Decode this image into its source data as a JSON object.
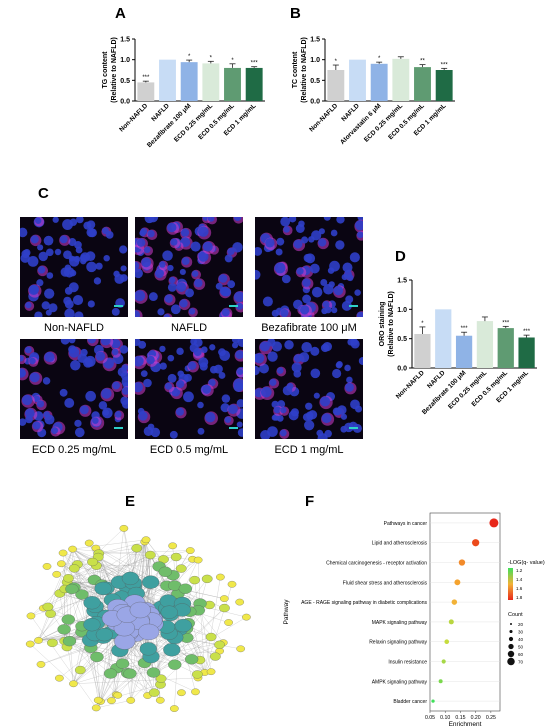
{
  "panels": {
    "A": "A",
    "B": "B",
    "C": "C",
    "D": "D",
    "E": "E",
    "F": "F"
  },
  "colors": {
    "grey": "#d0d0d0",
    "light_blue": "#c7dcf5",
    "blue": "#8fb3e6",
    "pale_green": "#d9ead9",
    "green1": "#9cc6a6",
    "green2": "#5f9b72",
    "green3": "#1f6b45",
    "micro_bg": "#0a0512",
    "nucleus": "#2f3fc9",
    "lipid": "#d23ccf"
  },
  "chart_data": [
    {
      "id": "A",
      "type": "bar",
      "ylabel": "TG content",
      "ylabel2": "(Relative to NAFLD)",
      "ylim": [
        0,
        1.5
      ],
      "yticks": [
        "0.0",
        "0.5",
        "1.0",
        "1.5"
      ],
      "categories": [
        "Non-NAFLD",
        "NAFLD",
        "Bezafibrate 100 μM",
        "ECD 0.25 mg/mL",
        "ECD 0.5 mg/mL",
        "ECD 1 mg/mL"
      ],
      "values": [
        0.45,
        1.0,
        0.94,
        0.91,
        0.8,
        0.8
      ],
      "errors": [
        0.03,
        0,
        0.05,
        0.05,
        0.1,
        0.03
      ],
      "sig": [
        "***",
        "",
        "*",
        "*",
        "*",
        "***"
      ],
      "colors": [
        "#d0d0d0",
        "#c7dcf5",
        "#8fb3e6",
        "#d9ead9",
        "#5f9b72",
        "#1f6b45"
      ]
    },
    {
      "id": "B",
      "type": "bar",
      "ylabel": "TC content",
      "ylabel2": "(Relative to NAFLD)",
      "ylim": [
        0,
        1.5
      ],
      "yticks": [
        "0.0",
        "0.5",
        "1.0",
        "1.5"
      ],
      "categories": [
        "Non-NAFLD",
        "NAFLD",
        "Atorvastatin 6 μM",
        "ECD 0.25 mg/mL",
        "ECD 0.5 mg/mL",
        "ECD 1 mg/mL"
      ],
      "values": [
        0.75,
        1.0,
        0.9,
        1.02,
        0.82,
        0.75
      ],
      "errors": [
        0.12,
        0,
        0.04,
        0.05,
        0.06,
        0.04
      ],
      "sig": [
        "*",
        "",
        "*",
        "",
        "**",
        "***"
      ],
      "colors": [
        "#d0d0d0",
        "#c7dcf5",
        "#8fb3e6",
        "#d9ead9",
        "#5f9b72",
        "#1f6b45"
      ]
    },
    {
      "id": "D",
      "type": "bar",
      "ylabel": "ORO staining",
      "ylabel2": "(Relative to NAFLD)",
      "ylim": [
        0,
        1.5
      ],
      "yticks": [
        "0.0",
        "0.5",
        "1.0",
        "1.5"
      ],
      "categories": [
        "Non-NAFLD",
        "NAFLD",
        "Bezafibrate 100 μM",
        "ECD 0.25 mg/mL",
        "ECD 0.5 mg/mL",
        "ECD 1 mg/mL"
      ],
      "values": [
        0.58,
        1.0,
        0.55,
        0.8,
        0.68,
        0.52
      ],
      "errors": [
        0.12,
        0,
        0.06,
        0.07,
        0.03,
        0.04
      ],
      "sig": [
        "*",
        "",
        "***",
        "",
        "***",
        "***"
      ],
      "colors": [
        "#d0d0d0",
        "#c7dcf5",
        "#8fb3e6",
        "#d9ead9",
        "#5f9b72",
        "#1f6b45"
      ]
    },
    {
      "id": "F",
      "type": "scatter",
      "ylabel": "Pathway",
      "xlabel": "Enrichment",
      "xticks": [
        "0.05",
        "0.10",
        "0.15",
        "0.20",
        "0.25"
      ],
      "xlim": [
        0.05,
        0.28
      ],
      "pathways": [
        {
          "name": "Pathways in cancer",
          "x": 0.26,
          "count": 75,
          "color": "#e8281b"
        },
        {
          "name": "Lipid and atherosclerosis",
          "x": 0.2,
          "count": 55,
          "color": "#ec4a1c"
        },
        {
          "name": "Chemical carcinogenesis - receptor activation",
          "x": 0.155,
          "count": 45,
          "color": "#f28a2a"
        },
        {
          "name": "Fluid shear stress and atherosclerosis",
          "x": 0.14,
          "count": 40,
          "color": "#f5a32e"
        },
        {
          "name": "AGE - RAGE signaling pathway in diabetic complications",
          "x": 0.13,
          "count": 35,
          "color": "#f2b237"
        },
        {
          "name": "MAPK signaling pathway",
          "x": 0.12,
          "count": 30,
          "color": "#b9d640"
        },
        {
          "name": "Relaxin signaling pathway",
          "x": 0.105,
          "count": 25,
          "color": "#c6dc3d"
        },
        {
          "name": "Insulin resistance",
          "x": 0.095,
          "count": 20,
          "color": "#a6d846"
        },
        {
          "name": "AMPK signaling pathway",
          "x": 0.085,
          "count": 18,
          "color": "#7ad84c"
        },
        {
          "name": "Bladder cancer",
          "x": 0.06,
          "count": 10,
          "color": "#3fe05a"
        }
      ],
      "legend_color_title": "-LOG(q- value)",
      "legend_color_ticks": [
        "1.2",
        "1.4",
        "1.6",
        "1.8"
      ],
      "legend_size_title": "Count",
      "legend_size_values": [
        "20",
        "30",
        "40",
        "50",
        "60",
        "70"
      ]
    }
  ],
  "micrographs": {
    "labels": [
      "Non-NAFLD",
      "NAFLD",
      "Bezafibrate 100 μM",
      "ECD 0.25 mg/mL",
      "ECD 0.5 mg/mL",
      "ECD 1 mg/mL"
    ],
    "lipid_level": [
      0.1,
      0.55,
      0.2,
      0.45,
      0.3,
      0.15
    ]
  },
  "network": {
    "node_colors": [
      "#f0e84a",
      "#c9e04a",
      "#6fbd6a",
      "#3fa0a0",
      "#9aa6e6"
    ]
  }
}
